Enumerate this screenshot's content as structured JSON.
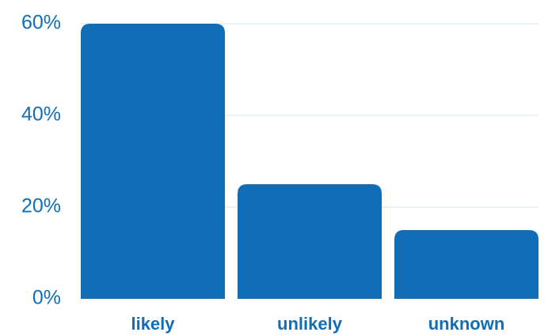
{
  "chart_data": {
    "type": "bar",
    "categories": [
      "likely",
      "unlikely",
      "unknown"
    ],
    "values": [
      60,
      25,
      15
    ],
    "ylim": [
      0,
      60
    ],
    "yticks": [
      0,
      20,
      40,
      60
    ],
    "ytick_labels": [
      "0%",
      "20%",
      "40%",
      "60%"
    ],
    "grid": true,
    "legend": false,
    "colors": {
      "bar": "#116eb6",
      "tick_text": "#116eb6",
      "grid": "#d6e4ef"
    }
  }
}
